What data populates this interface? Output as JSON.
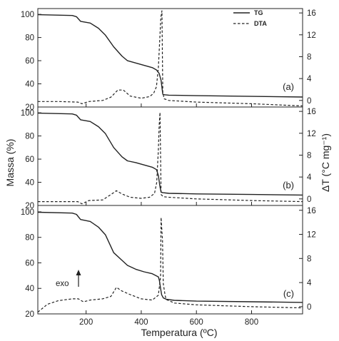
{
  "chart_data": {
    "type": "line",
    "xlabel": "Temperatura (ºC)",
    "ylabel_left": "Massa (%)",
    "ylabel_right": "ΔT (°C mg⁻¹)",
    "xlim": [
      25,
      985
    ],
    "x_ticks": [
      200,
      400,
      600,
      800
    ],
    "y_left_ticks": [
      20,
      40,
      60,
      80,
      100
    ],
    "y_right_ticks": [
      0,
      4,
      8,
      12,
      16
    ],
    "legend": {
      "position": "top-right",
      "entries": [
        {
          "name": "TG",
          "style": "solid"
        },
        {
          "name": "DTA",
          "style": "dashed"
        }
      ]
    },
    "annotation": {
      "text": "exo",
      "arrow": "up",
      "panel": "c"
    },
    "line_color": "#222222",
    "panels": [
      {
        "label": "(a)",
        "ylim_left": [
          20,
          105
        ],
        "ylim_right": [
          -1.2,
          16.8
        ],
        "series": [
          {
            "name": "TG",
            "style": "solid",
            "x": [
              25,
              150,
              165,
              180,
              215,
              245,
              270,
              300,
              330,
              350,
              380,
              410,
              440,
              455,
              465,
              472,
              478,
              484,
              500,
              600,
              800,
              985
            ],
            "y": [
              99.7,
              99,
              98,
              94,
              92.5,
              88,
              82,
              72,
              64,
              60,
              58,
              56,
              54,
              52,
              49,
              43,
              31,
              30.6,
              30.2,
              29.8,
              29.2,
              28.6
            ]
          },
          {
            "name": "DTA",
            "style": "dashed",
            "x": [
              25,
              100,
              170,
              185,
              210,
              260,
              290,
              315,
              335,
              360,
              400,
              430,
              445,
              455,
              462,
              467,
              471,
              475,
              478,
              483,
              500,
              600,
              800,
              985
            ],
            "y": [
              -0.2,
              -0.2,
              -0.3,
              -0.6,
              -0.2,
              0,
              0.6,
              1.9,
              1.9,
              0.8,
              0.4,
              0.7,
              1.3,
              2.5,
              6,
              11,
              15.2,
              16.4,
              1.5,
              0.3,
              0,
              -0.3,
              -0.6,
              -1
            ]
          }
        ]
      },
      {
        "label": "(b)",
        "ylim_left": [
          20,
          105
        ],
        "ylim_right": [
          -1.2,
          16.8
        ],
        "series": [
          {
            "name": "TG",
            "style": "solid",
            "x": [
              25,
              150,
              165,
              180,
              215,
              245,
              270,
              300,
              330,
              350,
              380,
              410,
              440,
              455,
              462,
              468,
              472,
              478,
              500,
              600,
              800,
              985
            ],
            "y": [
              99.7,
              99,
              98,
              94,
              92.5,
              88,
              82,
              70,
              62,
              58.5,
              57,
              55,
              53,
              51,
              46,
              36,
              31.5,
              31,
              30.5,
              30,
              29.5,
              29
            ]
          },
          {
            "name": "DTA",
            "style": "dashed",
            "x": [
              25,
              100,
              170,
              185,
              210,
              260,
              290,
              310,
              330,
              360,
              400,
              430,
              448,
              456,
              462,
              465,
              468,
              472,
              480,
              500,
              600,
              800,
              985
            ],
            "y": [
              -0.5,
              -0.5,
              -0.5,
              -0.9,
              -0.3,
              -0.2,
              0.8,
              1.5,
              0.9,
              0.3,
              0.1,
              0.3,
              1,
              3,
              9,
              13.4,
              15.8,
              0.8,
              0.4,
              0.3,
              0,
              -0.3,
              -0.5
            ]
          }
        ]
      },
      {
        "label": "(c)",
        "ylim_left": [
          20,
          105
        ],
        "ylim_right": [
          -1.2,
          16.8
        ],
        "series": [
          {
            "name": "TG",
            "style": "solid",
            "x": [
              25,
              150,
              165,
              180,
              215,
              245,
              270,
              300,
              330,
              350,
              380,
              410,
              440,
              462,
              466,
              470,
              474,
              480,
              490,
              520,
              600,
              800,
              985
            ],
            "y": [
              99.7,
              99,
              98,
              94,
              92.5,
              88,
              82,
              68,
              62,
              58,
              55,
              53,
              51.5,
              49,
              46,
              40,
              35,
              32.5,
              31.5,
              30.6,
              30,
              29.5,
              29
            ]
          },
          {
            "name": "DTA",
            "style": "dashed",
            "x": [
              25,
              60,
              100,
              150,
              172,
              190,
              215,
              260,
              290,
              310,
              330,
              360,
              400,
              440,
              462,
              470,
              472,
              477,
              480,
              486,
              490,
              520,
              600,
              800,
              985
            ],
            "y": [
              -0.9,
              0.4,
              1,
              1.3,
              1.3,
              0.8,
              1.1,
              1.3,
              1.7,
              3.2,
              2.6,
              2,
              1.3,
              1.1,
              1.9,
              5,
              14.8,
              11,
              3.8,
              2,
              1.2,
              0.6,
              0.3,
              0,
              -0.2
            ]
          }
        ]
      }
    ]
  }
}
